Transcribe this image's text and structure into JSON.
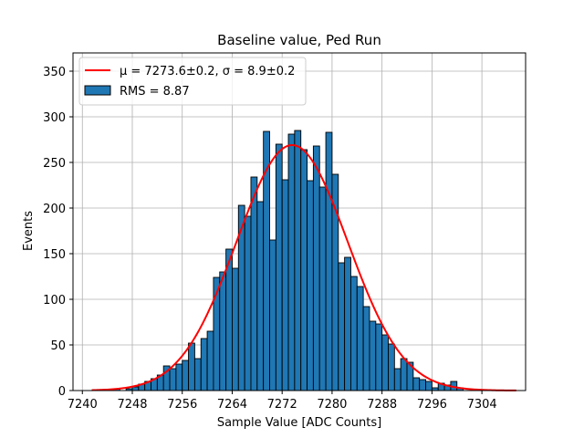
{
  "chart_data": {
    "type": "bar",
    "title": "Baseline value, Ped Run",
    "xlabel": "Sample Value [ADC Counts]",
    "ylabel": "Events",
    "xlim": [
      7238.5,
      7311.0
    ],
    "ylim": [
      0,
      370
    ],
    "grid": true,
    "legend_position": "top-left",
    "bin_width": 1,
    "x_ticks": [
      7240,
      7248,
      7256,
      7264,
      7272,
      7280,
      7288,
      7296,
      7304
    ],
    "y_ticks": [
      0,
      50,
      100,
      150,
      200,
      250,
      300,
      350
    ],
    "histogram": {
      "name": "RMS = 8.87",
      "color": "#1f77b4",
      "edge_color": "#000000",
      "bin_edges_start": 7245,
      "values": [
        2,
        0,
        2,
        4,
        7,
        10,
        13,
        17,
        27,
        24,
        29,
        33,
        52,
        35,
        57,
        65,
        124,
        130,
        155,
        134,
        203,
        191,
        234,
        207,
        284,
        165,
        270,
        231,
        281,
        285,
        264,
        230,
        268,
        223,
        283,
        237,
        140,
        146,
        125,
        114,
        92,
        76,
        73,
        61,
        51,
        24,
        35,
        31,
        14,
        12,
        10,
        3,
        8,
        6,
        10,
        3
      ]
    },
    "fit": {
      "name": "μ = 7273.6±0.2, σ = 8.9±0.2",
      "color": "#ff0000",
      "mu": 7273.6,
      "sigma": 8.9,
      "amplitude": 269,
      "x_range": [
        7241.5,
        7309.5
      ]
    }
  }
}
